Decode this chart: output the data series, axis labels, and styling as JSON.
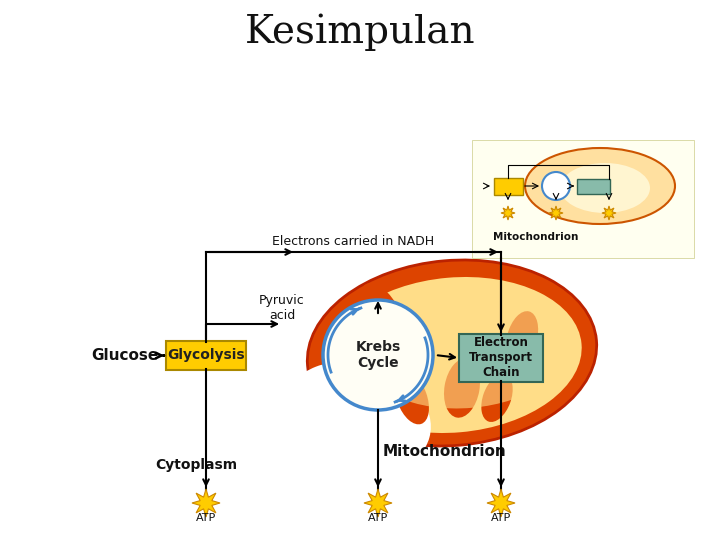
{
  "title": "Kesimpulan",
  "title_fontsize": 28,
  "bg_color": "#ffffff",
  "mito_outer_color": "#dd4400",
  "mito_inner_color": "#ffdd88",
  "krebs_circle_color": "#4488cc",
  "etc_box_color": "#88bbaa",
  "glycolysis_box_color": "#ffcc00",
  "atp_star_color": "#ffcc00",
  "atp_star_outline": "#cc8800",
  "labels": {
    "electrons_nadh": "Electrons carried in NADH",
    "pyruvic_acid": "Pyruvic\nacid",
    "glucose": "Glucose",
    "glycolysis": "Glycolysis",
    "krebs": "Krebs\nCycle",
    "etc": "Electron\nTransport\nChain",
    "cytoplasm": "Cytoplasm",
    "mitochondrion_main": "Mitochondrion",
    "mitochondrion_thumb": "Mitochondrion",
    "atp": "ATP"
  }
}
